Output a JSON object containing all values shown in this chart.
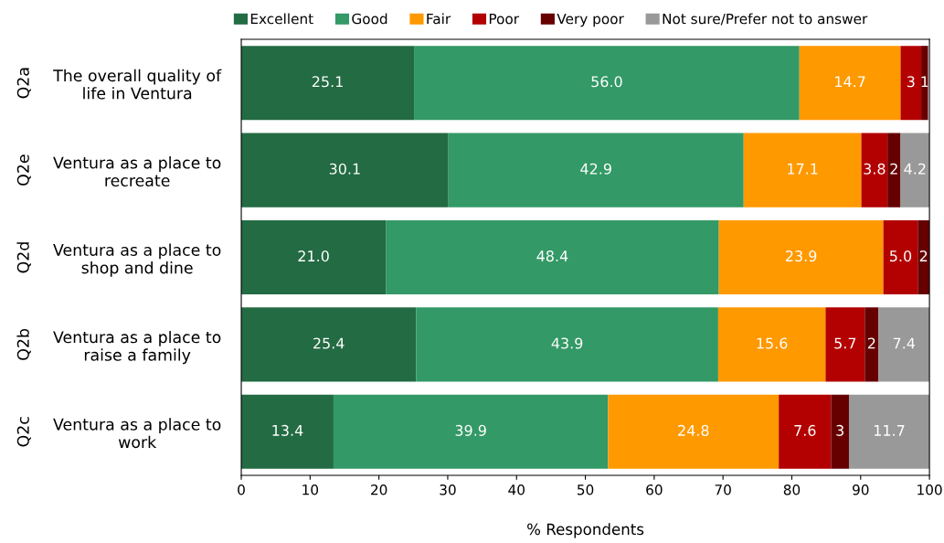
{
  "chart_data": {
    "type": "bar",
    "orientation": "horizontal",
    "stacked": true,
    "xlabel": "% Respondents",
    "categories": [
      "The overall quality of\nlife in Ventura",
      "Ventura as a place to\nrecreate",
      "Ventura as a place to\nshop and dine",
      "Ventura as a place to\nraise a family",
      "Ventura as a place to\nwork"
    ],
    "annotations": [
      "Q2a",
      "Q2e",
      "Q2d",
      "Q2b",
      "Q2c"
    ],
    "series": [
      {
        "name": "Excellent",
        "color": "#236b43",
        "values": [
          25.1,
          30.1,
          21.0,
          25.4,
          13.4
        ],
        "value_labels": [
          "25.1",
          "30.1",
          "21.0",
          "25.4",
          "13.4"
        ]
      },
      {
        "name": "Good",
        "color": "#339966",
        "values": [
          56.0,
          42.9,
          48.4,
          43.9,
          39.9
        ],
        "value_labels": [
          "56.0",
          "42.9",
          "48.4",
          "43.9",
          "39.9"
        ]
      },
      {
        "name": "Fair",
        "color": "#ff9900",
        "values": [
          14.7,
          17.1,
          23.9,
          15.6,
          24.8
        ],
        "value_labels": [
          "14.7",
          "17.1",
          "23.9",
          "15.6",
          "24.8"
        ]
      },
      {
        "name": "Poor",
        "color": "#b30000",
        "values": [
          3.0,
          3.8,
          5.0,
          5.7,
          7.6
        ],
        "value_labels": [
          "3",
          "3.8",
          "5.0",
          "5.7",
          "7.6"
        ]
      },
      {
        "name": "Very poor",
        "color": "#660000",
        "values": [
          1.0,
          1.9,
          1.7,
          2.0,
          2.6
        ],
        "value_labels": [
          "1",
          "2",
          "2",
          "2",
          "3"
        ]
      },
      {
        "name": "Not sure/Prefer not to answer",
        "color": "#999999",
        "values": [
          null,
          4.2,
          null,
          7.4,
          11.7
        ],
        "value_labels": [
          null,
          "4.2",
          null,
          "7.4",
          "11.7"
        ]
      }
    ],
    "xlim": [
      0,
      100
    ],
    "xticks": [
      0,
      10,
      20,
      30,
      40,
      50,
      60,
      70,
      80,
      90,
      100
    ],
    "grid": false,
    "legend": "top"
  }
}
